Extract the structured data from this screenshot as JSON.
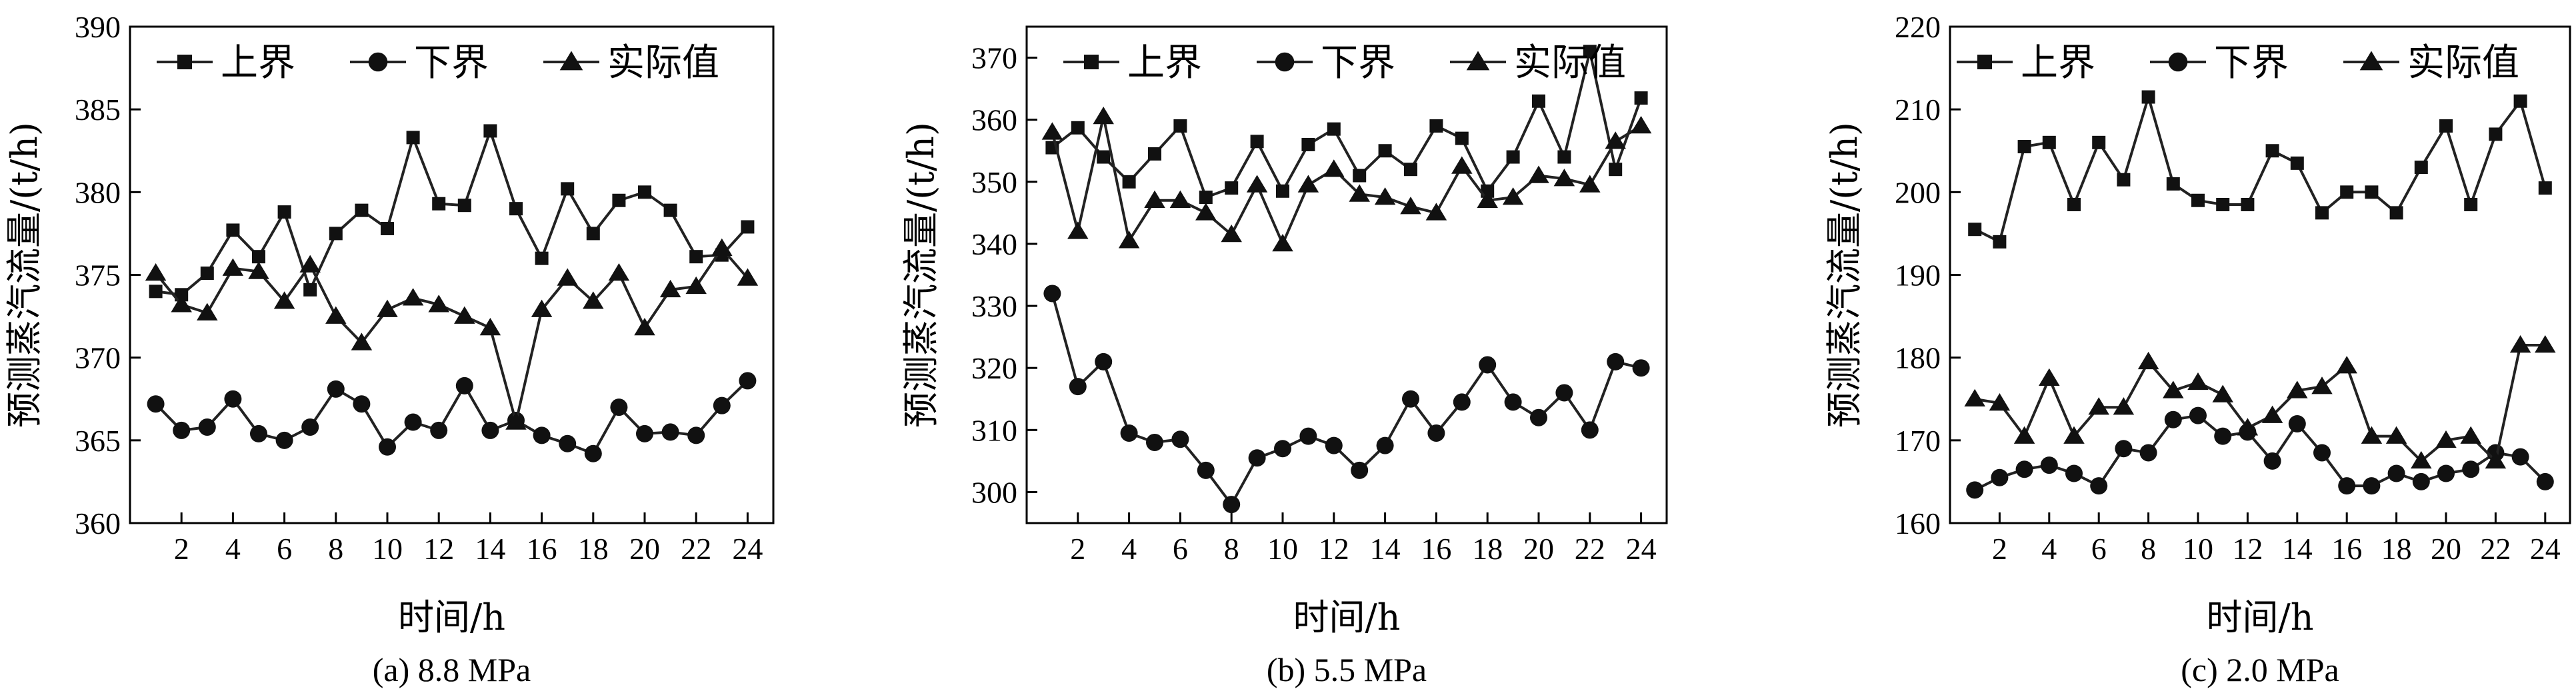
{
  "chart_data": [
    {
      "type": "line",
      "caption": "(a) 8.8 MPa",
      "xlabel": "时间/h",
      "ylabel": "预测蒸汽流量/(t/h)",
      "xlim": [
        0,
        25
      ],
      "ylim": [
        360,
        390
      ],
      "xticks": [
        2,
        4,
        6,
        8,
        10,
        12,
        14,
        16,
        18,
        20,
        22,
        24
      ],
      "yticks": [
        360,
        365,
        370,
        375,
        380,
        385,
        390
      ],
      "legend_position": "top",
      "x": [
        1,
        2,
        3,
        4,
        5,
        6,
        7,
        8,
        9,
        10,
        11,
        12,
        13,
        14,
        15,
        16,
        17,
        18,
        19,
        20,
        21,
        22,
        23,
        24
      ],
      "series": [
        {
          "name": "上界",
          "marker": "square",
          "values": [
            374.0,
            373.8,
            375.1,
            377.7,
            376.1,
            378.8,
            374.1,
            377.5,
            378.9,
            377.8,
            383.3,
            379.3,
            379.2,
            383.7,
            379.0,
            376.0,
            380.2,
            377.5,
            379.5,
            380.0,
            378.9,
            376.1,
            376.2,
            377.9
          ]
        },
        {
          "name": "下界",
          "marker": "circle",
          "values": [
            367.2,
            365.6,
            365.8,
            367.5,
            365.4,
            365.0,
            365.8,
            368.1,
            367.2,
            364.6,
            366.1,
            365.6,
            368.3,
            365.6,
            366.2,
            365.3,
            364.8,
            364.2,
            367.0,
            365.4,
            365.5,
            365.3,
            367.1,
            368.6
          ]
        },
        {
          "name": "实际值",
          "marker": "triangle",
          "values": [
            375.1,
            373.2,
            372.7,
            375.4,
            375.2,
            373.4,
            375.6,
            372.5,
            370.9,
            372.9,
            373.6,
            373.2,
            372.5,
            371.8,
            366.1,
            372.9,
            374.8,
            373.4,
            375.1,
            371.8,
            374.1,
            374.3,
            376.6,
            374.8
          ]
        }
      ]
    },
    {
      "type": "line",
      "caption": "(b) 5.5 MPa",
      "xlabel": "时间/h",
      "ylabel": "预测蒸汽流量/(t/h)",
      "xlim": [
        0,
        25
      ],
      "ylim": [
        295,
        375
      ],
      "xticks": [
        2,
        4,
        6,
        8,
        10,
        12,
        14,
        16,
        18,
        20,
        22,
        24
      ],
      "yticks": [
        300,
        310,
        320,
        330,
        340,
        350,
        360,
        370
      ],
      "legend_position": "top",
      "x": [
        1,
        2,
        3,
        4,
        5,
        6,
        7,
        8,
        9,
        10,
        11,
        12,
        13,
        14,
        15,
        16,
        17,
        18,
        19,
        20,
        21,
        22,
        23,
        24
      ],
      "series": [
        {
          "name": "上界",
          "marker": "square",
          "values": [
            355.5,
            358.7,
            354.0,
            350.0,
            354.5,
            359.0,
            347.5,
            349.0,
            356.5,
            348.5,
            356.0,
            358.5,
            351.0,
            355.0,
            352.0,
            359.0,
            357.0,
            348.5,
            354.0,
            363.0,
            354.0,
            371.0,
            352.0,
            363.5
          ]
        },
        {
          "name": "下界",
          "marker": "circle",
          "values": [
            332.0,
            317.0,
            321.0,
            309.5,
            308.0,
            308.5,
            303.5,
            298.0,
            305.5,
            307.0,
            309.0,
            307.5,
            303.5,
            307.5,
            315.0,
            309.5,
            314.5,
            320.5,
            314.5,
            312.0,
            316.0,
            310.0,
            321.0,
            320.0
          ]
        },
        {
          "name": "实际值",
          "marker": "triangle",
          "values": [
            358.0,
            342.0,
            360.5,
            340.5,
            347.0,
            347.0,
            345.0,
            341.5,
            349.5,
            340.0,
            349.5,
            352.0,
            348.0,
            347.5,
            346.0,
            345.0,
            352.5,
            347.0,
            347.5,
            351.0,
            350.5,
            349.5,
            356.5,
            359.0
          ]
        }
      ]
    },
    {
      "type": "line",
      "caption": "(c) 2.0 MPa",
      "xlabel": "时间/h",
      "ylabel": "预测蒸汽流量/(t/h)",
      "xlim": [
        0,
        25
      ],
      "ylim": [
        160,
        220
      ],
      "xticks": [
        2,
        4,
        6,
        8,
        10,
        12,
        14,
        16,
        18,
        20,
        22,
        24
      ],
      "yticks": [
        160,
        170,
        180,
        190,
        200,
        210,
        220
      ],
      "legend_position": "top",
      "x": [
        1,
        2,
        3,
        4,
        5,
        6,
        7,
        8,
        9,
        10,
        11,
        12,
        13,
        14,
        15,
        16,
        17,
        18,
        19,
        20,
        21,
        22,
        23,
        24
      ],
      "series": [
        {
          "name": "上界",
          "marker": "square",
          "values": [
            195.5,
            194.0,
            205.5,
            206.0,
            198.5,
            206.0,
            201.5,
            211.5,
            201.0,
            199.0,
            198.5,
            198.5,
            205.0,
            203.5,
            197.5,
            200.0,
            200.0,
            197.5,
            203.0,
            208.0,
            198.5,
            207.0,
            211.0,
            200.5
          ]
        },
        {
          "name": "下界",
          "marker": "circle",
          "values": [
            164.0,
            165.5,
            166.5,
            167.0,
            166.0,
            164.5,
            169.0,
            168.5,
            172.5,
            173.0,
            170.5,
            171.0,
            167.5,
            172.0,
            168.5,
            164.5,
            164.5,
            166.0,
            165.0,
            166.0,
            166.5,
            168.5,
            168.0,
            165.0
          ]
        },
        {
          "name": "实际值",
          "marker": "triangle",
          "values": [
            175.0,
            174.5,
            170.5,
            177.5,
            170.5,
            174.0,
            174.0,
            179.5,
            176.0,
            177.0,
            175.5,
            171.5,
            173.0,
            176.0,
            176.5,
            179.0,
            170.5,
            170.5,
            167.5,
            170.0,
            170.5,
            167.5,
            181.5,
            181.5
          ]
        }
      ]
    }
  ]
}
